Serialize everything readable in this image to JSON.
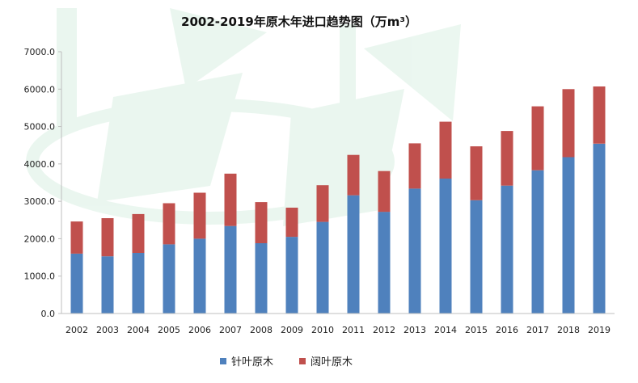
{
  "chart_data": {
    "type": "bar",
    "stacked": true,
    "title": "2002-2019年原木年进口趋势图（万m³）",
    "xlabel": "",
    "ylabel": "",
    "categories": [
      "2002",
      "2003",
      "2004",
      "2005",
      "2006",
      "2007",
      "2008",
      "2009",
      "2010",
      "2011",
      "2012",
      "2013",
      "2014",
      "2015",
      "2016",
      "2017",
      "2018",
      "2019"
    ],
    "series": [
      {
        "name": "针叶原木",
        "color": "#4f81bd",
        "values": [
          1600,
          1530,
          1620,
          1850,
          2000,
          2340,
          1880,
          2050,
          2450,
          3160,
          2720,
          3340,
          3610,
          3030,
          3420,
          3830,
          4180,
          4540
        ]
      },
      {
        "name": "阔叶原木",
        "color": "#c0504d",
        "values": [
          860,
          1020,
          1040,
          1100,
          1230,
          1400,
          1100,
          780,
          980,
          1080,
          1090,
          1210,
          1520,
          1440,
          1460,
          1710,
          1820,
          1530
        ]
      }
    ],
    "ylim": [
      0,
      7000
    ],
    "yticks": [
      "0.0",
      "1000.0",
      "2000.0",
      "3000.0",
      "4000.0",
      "5000.0",
      "6000.0",
      "7000.0"
    ],
    "grid": false,
    "legend_position": "bottom-center"
  }
}
